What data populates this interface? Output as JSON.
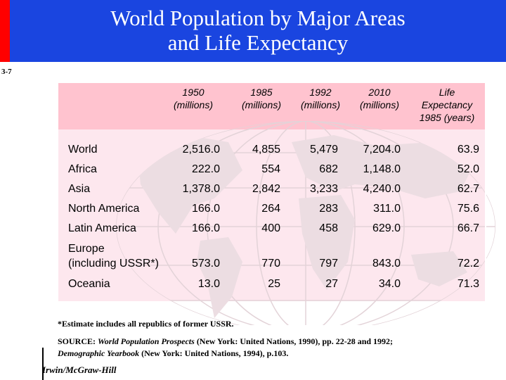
{
  "slide": {
    "title_line1": "World Population by Major Areas",
    "title_line2": "and Life Expectancy",
    "number": "3-7",
    "colors": {
      "banner": "#1a45e0",
      "accent_bar": "#ff0000",
      "header_band": "#ffc3cf",
      "table_bg": "#fde7ee"
    }
  },
  "table": {
    "headers": [
      {
        "l1": "1950",
        "l2": "(millions)",
        "l3": ""
      },
      {
        "l1": "1985",
        "l2": "(millions)",
        "l3": ""
      },
      {
        "l1": "1992",
        "l2": "(millions)",
        "l3": ""
      },
      {
        "l1": "2010",
        "l2": "(millions)",
        "l3": ""
      },
      {
        "l1": "Life",
        "l2": "Expectancy",
        "l3": "1985 (years)"
      }
    ],
    "rows": [
      {
        "area": "World",
        "area2": "",
        "v": [
          "2,516.0",
          "4,855",
          "5,479",
          "7,204.0",
          "63.9"
        ]
      },
      {
        "area": "Africa",
        "area2": "",
        "v": [
          "222.0",
          "554",
          "682",
          "1,148.0",
          "52.0"
        ]
      },
      {
        "area": "Asia",
        "area2": "",
        "v": [
          "1,378.0",
          "2,842",
          "3,233",
          "4,240.0",
          "62.7"
        ]
      },
      {
        "area": "North America",
        "area2": "",
        "v": [
          "166.0",
          "264",
          "283",
          "311.0",
          "75.6"
        ]
      },
      {
        "area": "Latin America",
        "area2": "",
        "v": [
          "166.0",
          "400",
          "458",
          "629.0",
          "66.7"
        ]
      },
      {
        "area": "Europe",
        "area2": "(including USSR*)",
        "v": [
          "573.0",
          "770",
          "797",
          "843.0",
          "72.2"
        ]
      },
      {
        "area": "Oceania",
        "area2": "",
        "v": [
          "13.0",
          "25",
          "27",
          "34.0",
          "71.3"
        ]
      }
    ]
  },
  "footnote": "*Estimate includes all republics of former USSR.",
  "source": {
    "prefix": "SOURCE: ",
    "title1": "World Population Prospects",
    "mid": " (New York: United Nations, 1990), pp. 22-28 and 1992; ",
    "title2": "Demographic Yearbook",
    "suffix": " (New York: United Nations, 1994), p.103."
  },
  "publisher": "Irwin/McGraw-Hill"
}
